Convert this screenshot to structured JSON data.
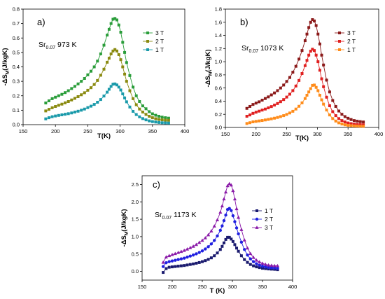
{
  "chart_data": [
    {
      "type": "line",
      "panel_label": "a)",
      "annotation": {
        "base": "Sr",
        "sub": "0.07",
        "rest": " 973 K"
      },
      "xlabel": "T(K)",
      "ylabel": {
        "pre": "-ΔS",
        "sub": "M",
        "post": "(J/kgK)"
      },
      "xlim": [
        150,
        400
      ],
      "ylim": [
        0,
        0.8
      ],
      "xticks": [
        "150",
        "200",
        "250",
        "300",
        "350",
        "400"
      ],
      "yticks": [
        "0.0",
        "0.1",
        "0.2",
        "0.3",
        "0.4",
        "0.5",
        "0.6",
        "0.7",
        "0.8"
      ],
      "legend_position": "top-right",
      "x": [
        185,
        190,
        195,
        200,
        205,
        210,
        215,
        220,
        225,
        230,
        235,
        240,
        245,
        250,
        255,
        260,
        265,
        270,
        275,
        280,
        283,
        286,
        289,
        292,
        295,
        298,
        301,
        304,
        307,
        310,
        315,
        320,
        325,
        330,
        335,
        340,
        345,
        350,
        355,
        360,
        365,
        370,
        375
      ],
      "series": [
        {
          "name": "3 T",
          "color": "#2a9d3a",
          "marker": "square",
          "values": [
            0.15,
            0.165,
            0.18,
            0.19,
            0.2,
            0.21,
            0.222,
            0.235,
            0.25,
            0.265,
            0.282,
            0.3,
            0.32,
            0.345,
            0.37,
            0.4,
            0.44,
            0.49,
            0.55,
            0.62,
            0.66,
            0.7,
            0.73,
            0.735,
            0.725,
            0.69,
            0.64,
            0.57,
            0.5,
            0.43,
            0.34,
            0.26,
            0.2,
            0.16,
            0.13,
            0.11,
            0.09,
            0.075,
            0.065,
            0.058,
            0.052,
            0.048,
            0.045
          ]
        },
        {
          "name": "2 T",
          "color": "#8a8a10",
          "marker": "square",
          "values": [
            0.095,
            0.106,
            0.117,
            0.126,
            0.134,
            0.142,
            0.151,
            0.16,
            0.171,
            0.182,
            0.194,
            0.207,
            0.221,
            0.238,
            0.256,
            0.278,
            0.306,
            0.342,
            0.384,
            0.432,
            0.46,
            0.49,
            0.51,
            0.52,
            0.51,
            0.485,
            0.45,
            0.4,
            0.35,
            0.3,
            0.235,
            0.18,
            0.138,
            0.108,
            0.087,
            0.071,
            0.058,
            0.048,
            0.041,
            0.036,
            0.033,
            0.031,
            0.03
          ]
        },
        {
          "name": "1 T",
          "color": "#1a9aaa",
          "marker": "square",
          "values": [
            0.04,
            0.048,
            0.055,
            0.06,
            0.064,
            0.068,
            0.072,
            0.076,
            0.081,
            0.087,
            0.093,
            0.1,
            0.108,
            0.118,
            0.128,
            0.14,
            0.155,
            0.174,
            0.198,
            0.225,
            0.245,
            0.265,
            0.28,
            0.282,
            0.275,
            0.26,
            0.24,
            0.213,
            0.185,
            0.158,
            0.122,
            0.092,
            0.07,
            0.054,
            0.042,
            0.033,
            0.026,
            0.021,
            0.018,
            0.015,
            0.013,
            0.012,
            0.011
          ]
        }
      ]
    },
    {
      "type": "line",
      "panel_label": "b)",
      "annotation": {
        "base": "Sr",
        "sub": "0.07",
        "rest": " 1073 K"
      },
      "xlabel": "T(K)",
      "ylabel": {
        "pre": "-ΔS",
        "sub": "M",
        "post": "(J/kgK)"
      },
      "xlim": [
        150,
        400
      ],
      "ylim": [
        0,
        1.8
      ],
      "xticks": [
        "150",
        "200",
        "250",
        "300",
        "350",
        "400"
      ],
      "yticks": [
        "0.0",
        "0.2",
        "0.4",
        "0.6",
        "0.8",
        "1.0",
        "1.2",
        "1.4",
        "1.6",
        "1.8"
      ],
      "legend_position": "top-right",
      "x": [
        185,
        190,
        195,
        200,
        205,
        210,
        215,
        220,
        225,
        230,
        235,
        240,
        245,
        250,
        255,
        260,
        265,
        270,
        275,
        280,
        283,
        286,
        289,
        292,
        295,
        298,
        301,
        304,
        307,
        310,
        315,
        320,
        325,
        330,
        335,
        340,
        345,
        350,
        355,
        360,
        365,
        370,
        375
      ],
      "series": [
        {
          "name": "3 T",
          "color": "#8b1a1a",
          "marker": "square",
          "values": [
            0.29,
            0.32,
            0.35,
            0.37,
            0.39,
            0.415,
            0.44,
            0.465,
            0.495,
            0.525,
            0.56,
            0.6,
            0.645,
            0.7,
            0.76,
            0.84,
            0.93,
            1.04,
            1.17,
            1.32,
            1.42,
            1.52,
            1.6,
            1.64,
            1.62,
            1.55,
            1.42,
            1.27,
            1.1,
            0.95,
            0.72,
            0.54,
            0.41,
            0.32,
            0.25,
            0.2,
            0.165,
            0.14,
            0.12,
            0.105,
            0.095,
            0.088,
            0.083
          ]
        },
        {
          "name": "2 T",
          "color": "#e02020",
          "marker": "square",
          "values": [
            0.17,
            0.19,
            0.215,
            0.232,
            0.248,
            0.264,
            0.28,
            0.298,
            0.318,
            0.34,
            0.364,
            0.392,
            0.424,
            0.462,
            0.506,
            0.56,
            0.63,
            0.715,
            0.82,
            0.94,
            1.02,
            1.1,
            1.16,
            1.19,
            1.17,
            1.1,
            1.0,
            0.87,
            0.74,
            0.62,
            0.46,
            0.33,
            0.24,
            0.18,
            0.135,
            0.105,
            0.083,
            0.068,
            0.058,
            0.05,
            0.045,
            0.042,
            0.04
          ]
        },
        {
          "name": "1 T",
          "color": "#ff8c1a",
          "marker": "square",
          "values": [
            0.06,
            0.072,
            0.085,
            0.092,
            0.099,
            0.106,
            0.114,
            0.122,
            0.131,
            0.141,
            0.152,
            0.165,
            0.18,
            0.198,
            0.22,
            0.246,
            0.28,
            0.322,
            0.374,
            0.44,
            0.49,
            0.54,
            0.59,
            0.64,
            0.645,
            0.61,
            0.56,
            0.49,
            0.42,
            0.355,
            0.265,
            0.19,
            0.135,
            0.097,
            0.07,
            0.052,
            0.04,
            0.032,
            0.027,
            0.023,
            0.021,
            0.019,
            0.018
          ]
        }
      ]
    },
    {
      "type": "line",
      "panel_label": "c)",
      "annotation": {
        "base": "Sr",
        "sub": "0.07",
        "rest": " 1173 K"
      },
      "xlabel": "T (K)",
      "ylabel": {
        "pre": "-ΔS",
        "sub": "M",
        "post": "(J/kgK)"
      },
      "xlim": [
        150,
        400
      ],
      "ylim": [
        -0.25,
        2.75
      ],
      "xticks": [
        "150",
        "200",
        "250",
        "300",
        "350",
        "400"
      ],
      "yticks": [
        "0.0",
        "0.5",
        "1.0",
        "1.5",
        "2.0",
        "2.5"
      ],
      "legend_position": "middle-right",
      "x": [
        185,
        190,
        195,
        200,
        205,
        210,
        215,
        220,
        225,
        230,
        235,
        240,
        245,
        250,
        255,
        260,
        265,
        270,
        275,
        280,
        283,
        286,
        289,
        292,
        295,
        298,
        301,
        304,
        307,
        310,
        315,
        320,
        325,
        330,
        335,
        340,
        345,
        350,
        355,
        360,
        365,
        370,
        375
      ],
      "series": [
        {
          "name": "1 T",
          "color": "#1a1a6e",
          "marker": "square",
          "values": [
            -0.03,
            0.08,
            0.12,
            0.13,
            0.14,
            0.15,
            0.16,
            0.17,
            0.185,
            0.2,
            0.215,
            0.235,
            0.255,
            0.28,
            0.31,
            0.345,
            0.39,
            0.45,
            0.53,
            0.63,
            0.72,
            0.82,
            0.92,
            0.98,
            0.98,
            0.93,
            0.86,
            0.77,
            0.67,
            0.58,
            0.45,
            0.34,
            0.26,
            0.2,
            0.16,
            0.13,
            0.11,
            0.09,
            0.08,
            0.07,
            0.065,
            0.06,
            0.05
          ]
        },
        {
          "name": "2 T",
          "color": "#2020e0",
          "marker": "circle",
          "values": [
            0.14,
            0.25,
            0.28,
            0.3,
            0.32,
            0.34,
            0.36,
            0.38,
            0.41,
            0.44,
            0.47,
            0.505,
            0.545,
            0.59,
            0.645,
            0.71,
            0.79,
            0.89,
            1.02,
            1.18,
            1.31,
            1.46,
            1.62,
            1.78,
            1.81,
            1.75,
            1.6,
            1.43,
            1.25,
            1.08,
            0.84,
            0.63,
            0.47,
            0.36,
            0.28,
            0.22,
            0.18,
            0.15,
            0.13,
            0.115,
            0.105,
            0.1,
            0.09
          ]
        },
        {
          "name": "3 T",
          "color": "#8a1aa8",
          "marker": "triangle",
          "values": [
            0.26,
            0.41,
            0.45,
            0.48,
            0.51,
            0.54,
            0.57,
            0.6,
            0.64,
            0.68,
            0.72,
            0.77,
            0.83,
            0.89,
            0.96,
            1.05,
            1.16,
            1.3,
            1.48,
            1.7,
            1.88,
            2.08,
            2.28,
            2.46,
            2.52,
            2.48,
            2.32,
            2.08,
            1.8,
            1.55,
            1.2,
            0.9,
            0.67,
            0.51,
            0.4,
            0.32,
            0.27,
            0.23,
            0.2,
            0.18,
            0.17,
            0.16,
            0.16
          ]
        }
      ]
    }
  ]
}
